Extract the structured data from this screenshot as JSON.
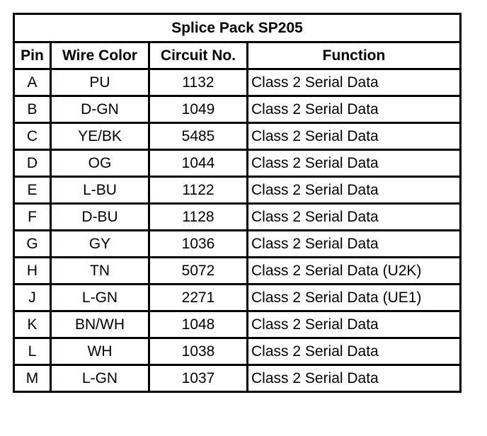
{
  "title": "Splice Pack SP205",
  "columns": [
    "Pin",
    "Wire Color",
    "Circuit No.",
    "Function"
  ],
  "rows": [
    [
      "A",
      "PU",
      "1132",
      "Class 2 Serial Data"
    ],
    [
      "B",
      "D-GN",
      "1049",
      "Class 2 Serial Data"
    ],
    [
      "C",
      "YE/BK",
      "5485",
      "Class 2 Serial Data"
    ],
    [
      "D",
      "OG",
      "1044",
      "Class 2 Serial Data"
    ],
    [
      "E",
      "L-BU",
      "1122",
      "Class 2 Serial Data"
    ],
    [
      "F",
      "D-BU",
      "1128",
      "Class 2 Serial Data"
    ],
    [
      "G",
      "GY",
      "1036",
      "Class 2 Serial Data"
    ],
    [
      "H",
      "TN",
      "5072",
      "Class 2 Serial Data (U2K)"
    ],
    [
      "J",
      "L-GN",
      "2271",
      "Class 2 Serial Data (UE1)"
    ],
    [
      "K",
      "BN/WH",
      "1048",
      "Class 2 Serial Data"
    ],
    [
      "L",
      "WH",
      "1038",
      "Class 2 Serial Data"
    ],
    [
      "M",
      "L-GN",
      "1037",
      "Class 2 Serial Data"
    ]
  ]
}
